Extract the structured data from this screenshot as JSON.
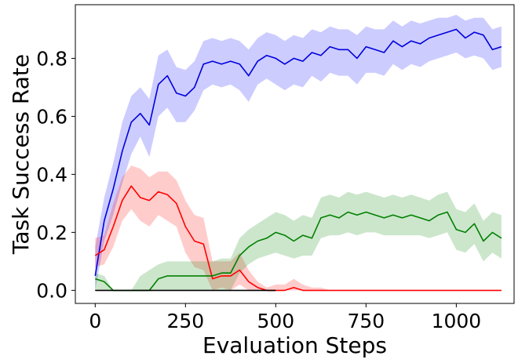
{
  "chart_data": {
    "type": "line",
    "xlabel": "Evaluation Steps",
    "ylabel": "Task Success Rate",
    "xlim": [
      -55,
      1160
    ],
    "ylim": [
      -0.045,
      0.985
    ],
    "xticks": [
      0,
      250,
      500,
      750,
      1000
    ],
    "xtick_labels": [
      "0",
      "250",
      "500",
      "750",
      "1000"
    ],
    "yticks": [
      0.0,
      0.2,
      0.4,
      0.6,
      0.8
    ],
    "ytick_labels": [
      "0.0",
      "0.2",
      "0.4",
      "0.6",
      "0.8"
    ],
    "grid": false,
    "legend": "none",
    "series": [
      {
        "color": "#0000dd",
        "band_color": "#0000ff",
        "x": [
          0,
          25,
          50,
          75,
          100,
          125,
          150,
          175,
          200,
          225,
          250,
          275,
          300,
          325,
          350,
          375,
          400,
          425,
          450,
          475,
          500,
          525,
          550,
          575,
          600,
          625,
          650,
          675,
          700,
          725,
          750,
          775,
          800,
          825,
          850,
          875,
          900,
          925,
          950,
          975,
          1000,
          1025,
          1050,
          1075,
          1100,
          1125
        ],
        "values": [
          0.05,
          0.24,
          0.35,
          0.48,
          0.58,
          0.61,
          0.57,
          0.71,
          0.74,
          0.68,
          0.67,
          0.7,
          0.78,
          0.79,
          0.78,
          0.79,
          0.78,
          0.74,
          0.79,
          0.81,
          0.8,
          0.78,
          0.8,
          0.79,
          0.82,
          0.81,
          0.84,
          0.83,
          0.83,
          0.8,
          0.84,
          0.83,
          0.82,
          0.86,
          0.84,
          0.86,
          0.85,
          0.87,
          0.88,
          0.89,
          0.9,
          0.87,
          0.89,
          0.88,
          0.83,
          0.84
        ],
        "lower": [
          0.0,
          0.17,
          0.26,
          0.37,
          0.47,
          0.53,
          0.46,
          0.6,
          0.63,
          0.58,
          0.58,
          0.62,
          0.69,
          0.71,
          0.7,
          0.71,
          0.69,
          0.65,
          0.71,
          0.73,
          0.71,
          0.69,
          0.71,
          0.7,
          0.74,
          0.72,
          0.75,
          0.74,
          0.74,
          0.71,
          0.75,
          0.75,
          0.74,
          0.78,
          0.76,
          0.78,
          0.77,
          0.79,
          0.8,
          0.81,
          0.82,
          0.8,
          0.81,
          0.8,
          0.76,
          0.77
        ],
        "upper": [
          0.15,
          0.32,
          0.44,
          0.58,
          0.67,
          0.7,
          0.66,
          0.81,
          0.83,
          0.77,
          0.76,
          0.79,
          0.86,
          0.87,
          0.86,
          0.87,
          0.86,
          0.83,
          0.87,
          0.89,
          0.88,
          0.86,
          0.88,
          0.87,
          0.9,
          0.89,
          0.91,
          0.9,
          0.9,
          0.88,
          0.91,
          0.9,
          0.9,
          0.93,
          0.91,
          0.93,
          0.92,
          0.93,
          0.94,
          0.94,
          0.95,
          0.93,
          0.94,
          0.94,
          0.9,
          0.91
        ]
      },
      {
        "color": "#ff0000",
        "band_color": "#ff0000",
        "x": [
          0,
          25,
          50,
          75,
          100,
          125,
          150,
          175,
          200,
          225,
          250,
          275,
          300,
          325,
          350,
          375,
          400,
          425,
          450,
          475,
          500,
          525,
          550,
          575,
          600,
          625,
          650,
          700,
          750,
          800,
          850,
          900,
          950,
          1000,
          1050,
          1100,
          1125
        ],
        "values": [
          0.12,
          0.14,
          0.22,
          0.31,
          0.36,
          0.32,
          0.31,
          0.34,
          0.33,
          0.3,
          0.22,
          0.17,
          0.16,
          0.04,
          0.05,
          0.05,
          0.07,
          0.03,
          0.01,
          0.0,
          0.0,
          0.0,
          0.01,
          0.0,
          0.0,
          0.0,
          0.0,
          0.0,
          0.0,
          0.0,
          0.0,
          0.0,
          0.0,
          0.0,
          0.0,
          0.0,
          0.0
        ],
        "lower": [
          0.08,
          0.09,
          0.15,
          0.24,
          0.28,
          0.24,
          0.22,
          0.26,
          0.24,
          0.22,
          0.13,
          0.08,
          0.07,
          0.0,
          0.01,
          0.0,
          0.02,
          0.0,
          0.0,
          0.0,
          0.0,
          0.0,
          0.0,
          0.0,
          0.0,
          0.0,
          0.0,
          0.0,
          0.0,
          0.0,
          0.0,
          0.0,
          0.0,
          0.0,
          0.0,
          0.0,
          0.0
        ],
        "upper": [
          0.18,
          0.19,
          0.3,
          0.39,
          0.43,
          0.42,
          0.39,
          0.41,
          0.41,
          0.38,
          0.31,
          0.26,
          0.25,
          0.1,
          0.1,
          0.1,
          0.13,
          0.07,
          0.03,
          0.01,
          0.02,
          0.02,
          0.04,
          0.02,
          0.01,
          0.01,
          0.0,
          0.0,
          0.0,
          0.0,
          0.0,
          0.0,
          0.0,
          0.0,
          0.0,
          0.0,
          0.0
        ]
      },
      {
        "color": "#008000",
        "band_color": "#008000",
        "x": [
          0,
          25,
          50,
          75,
          100,
          125,
          150,
          175,
          200,
          225,
          250,
          275,
          300,
          325,
          350,
          375,
          400,
          425,
          450,
          475,
          500,
          525,
          550,
          575,
          600,
          625,
          650,
          675,
          700,
          725,
          750,
          775,
          800,
          825,
          850,
          875,
          900,
          925,
          950,
          975,
          1000,
          1025,
          1050,
          1075,
          1100,
          1125
        ],
        "values": [
          0.04,
          0.03,
          0.0,
          0.0,
          0.0,
          0.0,
          0.0,
          0.04,
          0.05,
          0.05,
          0.05,
          0.05,
          0.05,
          0.05,
          0.06,
          0.06,
          0.12,
          0.15,
          0.17,
          0.18,
          0.2,
          0.19,
          0.17,
          0.19,
          0.18,
          0.25,
          0.26,
          0.25,
          0.27,
          0.26,
          0.27,
          0.26,
          0.25,
          0.26,
          0.25,
          0.26,
          0.25,
          0.24,
          0.26,
          0.27,
          0.21,
          0.2,
          0.23,
          0.17,
          0.2,
          0.18
        ],
        "lower": [
          0.0,
          0.0,
          0.0,
          0.0,
          0.0,
          0.0,
          0.0,
          0.0,
          0.0,
          0.0,
          0.0,
          0.0,
          0.0,
          0.0,
          0.0,
          0.0,
          0.06,
          0.09,
          0.11,
          0.12,
          0.13,
          0.12,
          0.11,
          0.12,
          0.12,
          0.18,
          0.19,
          0.19,
          0.2,
          0.19,
          0.2,
          0.2,
          0.19,
          0.19,
          0.19,
          0.19,
          0.19,
          0.18,
          0.19,
          0.2,
          0.14,
          0.13,
          0.16,
          0.1,
          0.13,
          0.11
        ],
        "upper": [
          0.06,
          0.05,
          0.0,
          0.0,
          0.0,
          0.05,
          0.07,
          0.09,
          0.1,
          0.1,
          0.1,
          0.1,
          0.1,
          0.1,
          0.11,
          0.11,
          0.18,
          0.21,
          0.23,
          0.25,
          0.27,
          0.26,
          0.24,
          0.26,
          0.25,
          0.32,
          0.33,
          0.32,
          0.34,
          0.33,
          0.34,
          0.33,
          0.32,
          0.33,
          0.32,
          0.33,
          0.32,
          0.31,
          0.33,
          0.34,
          0.28,
          0.27,
          0.3,
          0.24,
          0.27,
          0.26
        ]
      },
      {
        "color": "#000000",
        "band_color": "#000000",
        "x": [
          0,
          10,
          50,
          150,
          300,
          450,
          500
        ],
        "values": [
          0.0,
          0.0,
          0.0,
          0.0,
          0.0,
          0.0,
          0.0
        ],
        "lower": [
          0.0,
          0.0,
          0.0,
          0.0,
          0.0,
          0.0,
          0.0
        ],
        "upper": [
          0.0,
          0.0,
          0.0,
          0.0,
          0.0,
          0.0,
          0.0
        ]
      }
    ]
  }
}
